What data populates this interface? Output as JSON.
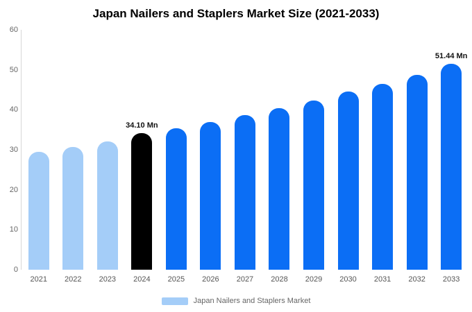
{
  "chart_data": {
    "type": "bar",
    "title": "Japan Nailers and Staplers Market Size (2021-2033)",
    "categories": [
      "2021",
      "2022",
      "2023",
      "2024",
      "2025",
      "2026",
      "2027",
      "2028",
      "2029",
      "2030",
      "2031",
      "2032",
      "2033"
    ],
    "values": [
      29.5,
      30.7,
      32.1,
      34.1,
      35.4,
      36.9,
      38.6,
      40.4,
      42.3,
      44.5,
      46.5,
      48.8,
      51.44
    ],
    "bar_colors": [
      "#A4CDF8",
      "#A4CDF8",
      "#A4CDF8",
      "#000000",
      "#0B6EF5",
      "#0B6EF5",
      "#0B6EF5",
      "#0B6EF5",
      "#0B6EF5",
      "#0B6EF5",
      "#0B6EF5",
      "#0B6EF5",
      "#0B6EF5"
    ],
    "value_labels": [
      "",
      "",
      "",
      "34.10 Mn",
      "",
      "",
      "",
      "",
      "",
      "",
      "",
      "",
      "51.44 Mn"
    ],
    "unit": "Mn",
    "xlabel": "",
    "ylabel": "",
    "ylim": [
      0,
      60
    ],
    "yticks": [
      0,
      10,
      20,
      30,
      40,
      50,
      60
    ],
    "grid": false,
    "legend": {
      "position": "bottom",
      "label": "Japan Nailers and Staplers Market",
      "swatch_color": "#A4CDF8"
    }
  }
}
